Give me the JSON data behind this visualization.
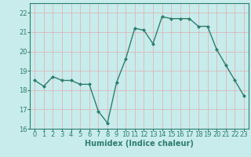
{
  "x": [
    0,
    1,
    2,
    3,
    4,
    5,
    6,
    7,
    8,
    9,
    10,
    11,
    12,
    13,
    14,
    15,
    16,
    17,
    18,
    19,
    20,
    21,
    22,
    23
  ],
  "y": [
    18.5,
    18.2,
    18.7,
    18.5,
    18.5,
    18.3,
    18.3,
    16.9,
    16.3,
    18.4,
    19.6,
    21.2,
    21.1,
    20.4,
    21.8,
    21.7,
    21.7,
    21.7,
    21.3,
    21.3,
    20.1,
    19.3,
    18.5,
    17.7
  ],
  "line_color": "#2e7d6e",
  "marker": "D",
  "marker_size": 2,
  "bg_color": "#c8ecec",
  "grid_color": "#d9b8b8",
  "xlabel": "Humidex (Indice chaleur)",
  "xlim": [
    -0.5,
    23.5
  ],
  "ylim": [
    16,
    22.5
  ],
  "yticks": [
    16,
    17,
    18,
    19,
    20,
    21,
    22
  ],
  "xticks": [
    0,
    1,
    2,
    3,
    4,
    5,
    6,
    7,
    8,
    9,
    10,
    11,
    12,
    13,
    14,
    15,
    16,
    17,
    18,
    19,
    20,
    21,
    22,
    23
  ],
  "axis_color": "#2e7d6e",
  "label_fontsize": 7,
  "tick_fontsize": 6
}
